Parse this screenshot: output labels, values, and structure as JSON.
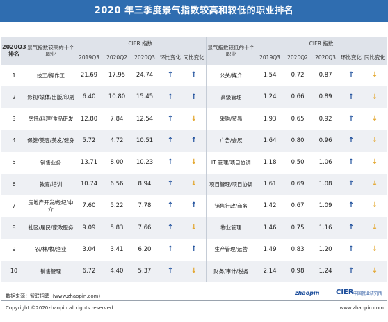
{
  "title": "2020 年三季度景气指数较高和较低的职业排名",
  "headers": {
    "rank": "2020Q3 排名",
    "high_occupation": "景气指数较高的十个职业",
    "low_occupation": "景气指数较低的十个职业",
    "cier_index": "CIER 指数",
    "q2019": "2019Q3",
    "q2020q2": "2020Q2",
    "q2020q3": "2020Q3",
    "qoq": "环比变化",
    "yoy": "同比变化"
  },
  "rows": [
    {
      "rank": "1",
      "high": "技工/操作工",
      "h19": "21.69",
      "h20q2": "17.95",
      "h20q3": "24.74",
      "hqoq": "up",
      "hyoy": "up",
      "low": "公关/媒介",
      "l19": "1.54",
      "l20q2": "0.72",
      "l20q3": "0.87",
      "lqoq": "up",
      "lyoy": "down"
    },
    {
      "rank": "2",
      "high": "影视/媒体/出版/印刷",
      "h19": "6.40",
      "h20q2": "10.80",
      "h20q3": "15.45",
      "hqoq": "up",
      "hyoy": "up",
      "low": "高级管理",
      "l19": "1.24",
      "l20q2": "0.66",
      "l20q3": "0.89",
      "lqoq": "up",
      "lyoy": "down"
    },
    {
      "rank": "3",
      "high": "烹饪/料理/食品研发",
      "h19": "12.80",
      "h20q2": "7.84",
      "h20q3": "12.54",
      "hqoq": "up",
      "hyoy": "down",
      "low": "采购/贸易",
      "l19": "1.93",
      "l20q2": "0.65",
      "l20q3": "0.92",
      "lqoq": "up",
      "lyoy": "down"
    },
    {
      "rank": "4",
      "high": "保健/美容/美发/健身",
      "h19": "5.72",
      "h20q2": "4.72",
      "h20q3": "10.51",
      "hqoq": "up",
      "hyoy": "up",
      "low": "广告/会展",
      "l19": "1.64",
      "l20q2": "0.80",
      "l20q3": "0.96",
      "lqoq": "up",
      "lyoy": "down"
    },
    {
      "rank": "5",
      "high": "销售业务",
      "h19": "13.71",
      "h20q2": "8.00",
      "h20q3": "10.23",
      "hqoq": "up",
      "hyoy": "down",
      "low": "IT 管理/项目协调",
      "l19": "1.18",
      "l20q2": "0.50",
      "l20q3": "1.06",
      "lqoq": "up",
      "lyoy": "down"
    },
    {
      "rank": "6",
      "high": "教育/培训",
      "h19": "10.74",
      "h20q2": "6.56",
      "h20q3": "8.94",
      "hqoq": "up",
      "hyoy": "down",
      "low": "项目管理/项目协调",
      "l19": "1.61",
      "l20q2": "0.69",
      "l20q3": "1.08",
      "lqoq": "up",
      "lyoy": "down"
    },
    {
      "rank": "7",
      "high": "房地产开发/经纪/中介",
      "h19": "7.60",
      "h20q2": "5.22",
      "h20q3": "7.78",
      "hqoq": "up",
      "hyoy": "up",
      "low": "销售行政/商务",
      "l19": "1.42",
      "l20q2": "0.67",
      "l20q3": "1.09",
      "lqoq": "up",
      "lyoy": "down"
    },
    {
      "rank": "8",
      "high": "社区/居民/家政服务",
      "h19": "9.09",
      "h20q2": "5.83",
      "h20q3": "7.66",
      "hqoq": "up",
      "hyoy": "down",
      "low": "物业管理",
      "l19": "1.46",
      "l20q2": "0.75",
      "l20q3": "1.16",
      "lqoq": "up",
      "lyoy": "down"
    },
    {
      "rank": "9",
      "high": "农/林/牧/渔业",
      "h19": "3.04",
      "h20q2": "3.41",
      "h20q3": "6.20",
      "hqoq": "up",
      "hyoy": "up",
      "low": "生产管理/运营",
      "l19": "1.49",
      "l20q2": "0.83",
      "l20q3": "1.20",
      "lqoq": "up",
      "lyoy": "down"
    },
    {
      "rank": "10",
      "high": "销售管理",
      "h19": "6.72",
      "h20q2": "4.40",
      "h20q3": "5.37",
      "hqoq": "up",
      "hyoy": "down",
      "low": "财务/审计/税务",
      "l19": "2.14",
      "l20q2": "0.98",
      "l20q3": "1.24",
      "lqoq": "up",
      "lyoy": "down"
    }
  ],
  "arrows": {
    "up": "↑",
    "down": "↓",
    "up_color": "#1e4f9c",
    "down_color": "#e3a52b"
  },
  "footer": {
    "source": "数据来源：智联招聘（www.zhaopin.com）",
    "copyright": "Copyright ©2020zhaopin all rights reserved",
    "logo_zhaopin": "zhaopin",
    "logo_cier": "CIER",
    "logo_cier_cn": "中国就业研究所",
    "url": "www.zhaopin.com"
  }
}
